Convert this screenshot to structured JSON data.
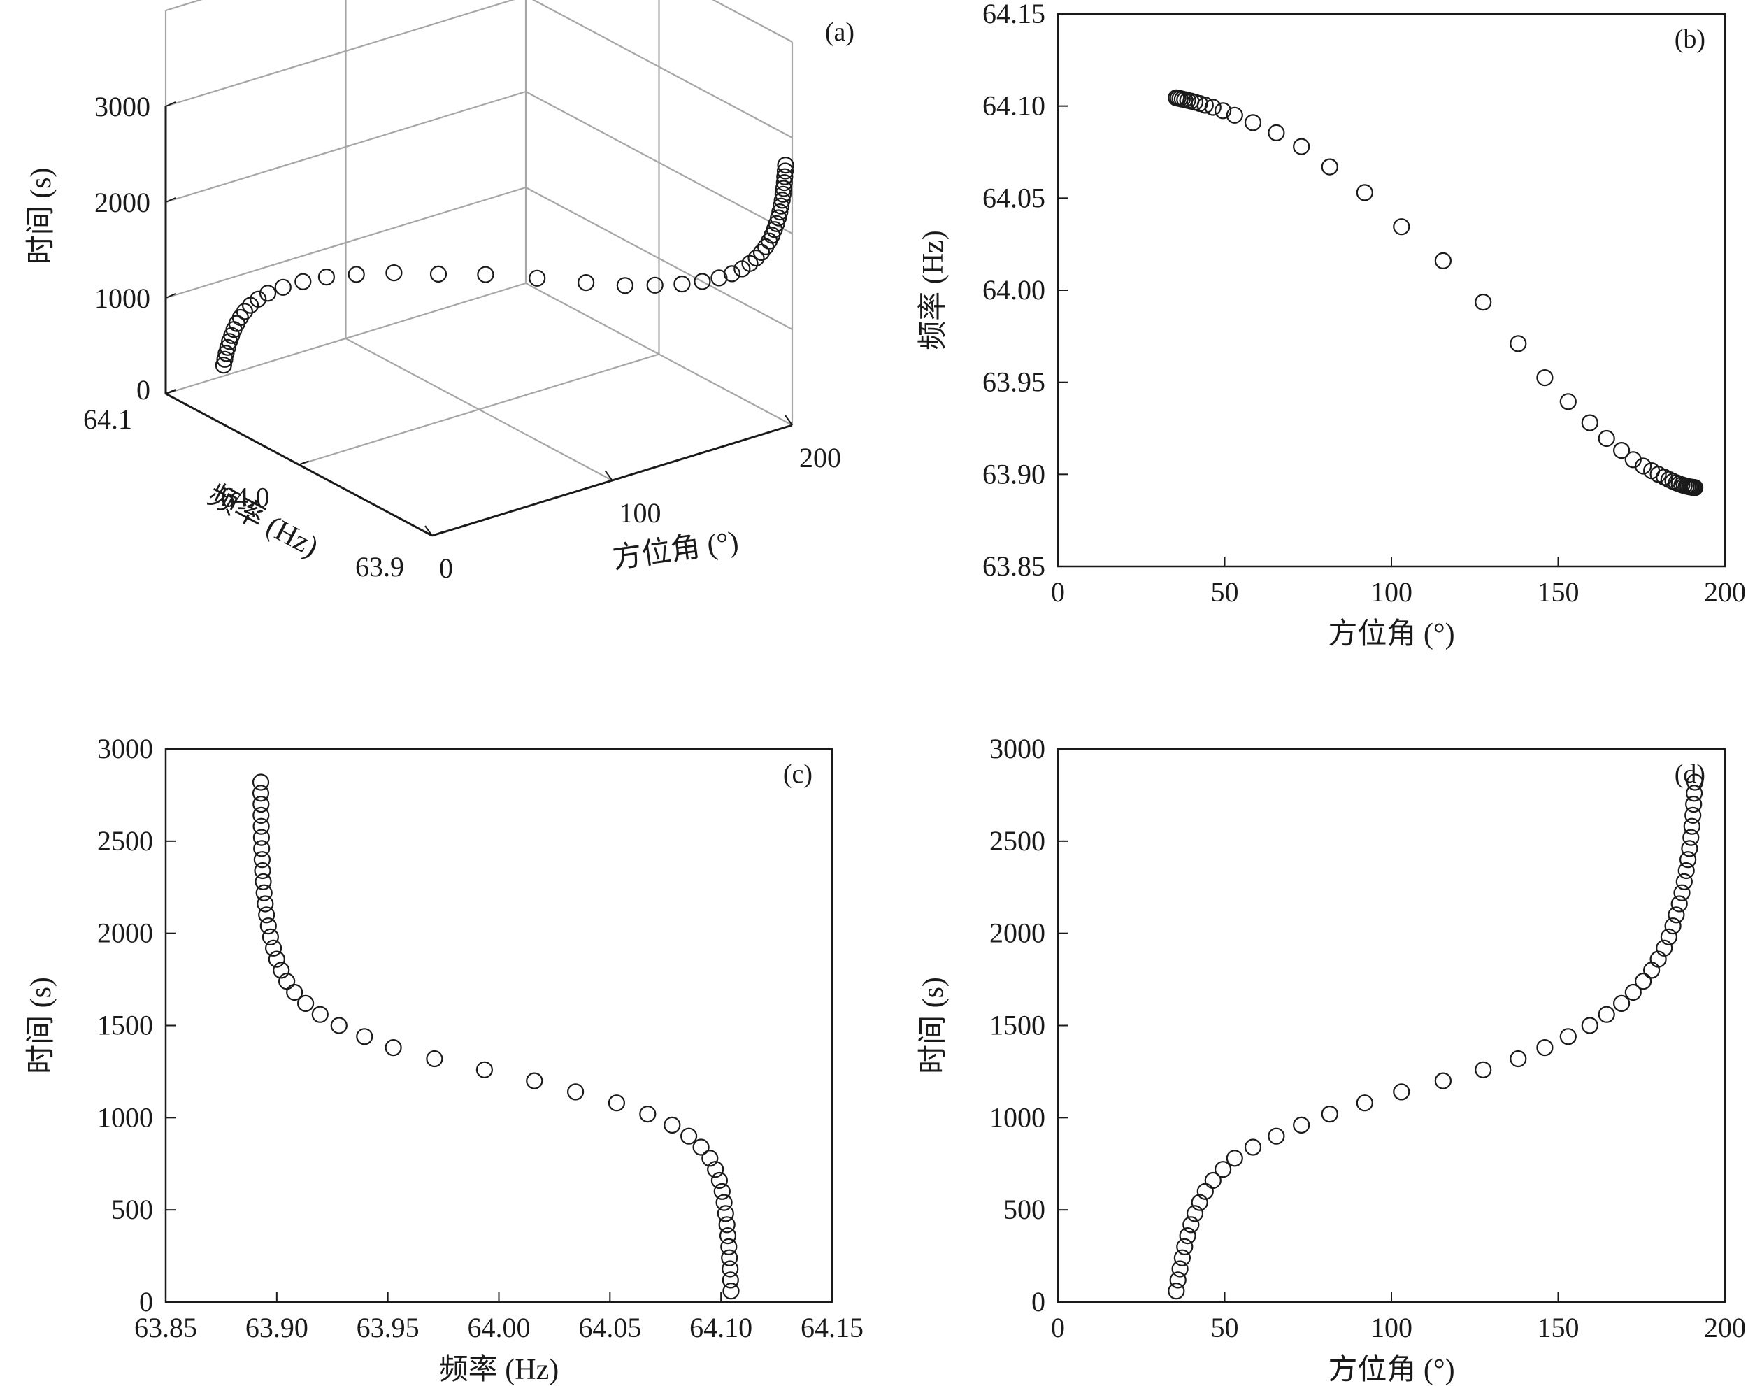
{
  "chart_data": [
    {
      "panel": "(a)",
      "type": "scatter",
      "projection": "3d",
      "x_axis": {
        "label": "方位角 (°)",
        "range": [
          0,
          200
        ],
        "ticks": [
          0,
          100,
          200
        ]
      },
      "y_axis": {
        "label": "频率 (Hz)",
        "range": [
          63.9,
          64.1
        ],
        "ticks": [
          "64.1",
          "64.0",
          "63.9"
        ]
      },
      "z_axis": {
        "label": "时间 (s)",
        "range": [
          0,
          3000
        ],
        "ticks": [
          0,
          1000,
          2000,
          3000
        ]
      },
      "grid": true,
      "marker": "open-circle"
    },
    {
      "panel": "(b)",
      "type": "scatter",
      "xlabel": "方位角 (°)",
      "ylabel": "频率 (Hz)",
      "xlim": [
        0,
        200
      ],
      "ylim": [
        63.85,
        64.15
      ],
      "xticks": [
        "0",
        "50",
        "100",
        "150",
        "200"
      ],
      "yticks": [
        "63.85",
        "63.90",
        "63.95",
        "64.00",
        "64.05",
        "64.10",
        "64.15"
      ],
      "grid": false,
      "marker": "open-circle"
    },
    {
      "panel": "(c)",
      "type": "scatter",
      "xlabel": "频率 (Hz)",
      "ylabel": "时间 (s)",
      "xlim": [
        63.85,
        64.15
      ],
      "ylim": [
        0,
        3000
      ],
      "xticks": [
        "63.85",
        "63.90",
        "63.95",
        "64.00",
        "64.05",
        "64.10",
        "64.15"
      ],
      "yticks": [
        "0",
        "500",
        "1000",
        "1500",
        "2000",
        "2500",
        "3000"
      ],
      "grid": false,
      "marker": "open-circle"
    },
    {
      "panel": "(d)",
      "type": "scatter",
      "xlabel": "方位角 (°)",
      "ylabel": "时间 (s)",
      "xlim": [
        0,
        200
      ],
      "ylim": [
        0,
        3000
      ],
      "xticks": [
        "0",
        "50",
        "100",
        "150",
        "200"
      ],
      "yticks": [
        "0",
        "500",
        "1000",
        "1500",
        "2000",
        "2500",
        "3000"
      ],
      "grid": false,
      "marker": "open-circle"
    }
  ],
  "samples": {
    "time_s": [
      60,
      120,
      180,
      240,
      300,
      360,
      420,
      480,
      540,
      600,
      660,
      720,
      780,
      840,
      900,
      960,
      1020,
      1080,
      1140,
      1200,
      1260,
      1320,
      1380,
      1440,
      1500,
      1560,
      1620,
      1680,
      1740,
      1800,
      1860,
      1920,
      1980,
      2040,
      2100,
      2160,
      2220,
      2280,
      2340,
      2400,
      2460,
      2520,
      2580,
      2640,
      2700,
      2760,
      2820
    ],
    "azimuth_deg": [
      35.5,
      36.0,
      36.6,
      37.3,
      38.0,
      38.9,
      39.9,
      41.1,
      42.5,
      44.2,
      46.5,
      49.5,
      53.0,
      58.5,
      65.5,
      73.0,
      81.5,
      92.0,
      103.0,
      115.5,
      127.5,
      138.0,
      146.0,
      153.0,
      159.5,
      164.5,
      169.0,
      172.5,
      175.5,
      178.0,
      180.0,
      181.8,
      183.2,
      184.4,
      185.4,
      186.3,
      187.1,
      187.8,
      188.4,
      188.9,
      189.4,
      189.8,
      190.1,
      190.4,
      190.6,
      190.8,
      191.0
    ],
    "frequency_hz": [
      64.1045,
      64.1043,
      64.1041,
      64.1038,
      64.1035,
      64.1031,
      64.1027,
      64.1021,
      64.1014,
      64.1005,
      64.0993,
      64.0975,
      64.095,
      64.091,
      64.0855,
      64.078,
      64.067,
      64.053,
      64.0345,
      64.016,
      63.9935,
      63.971,
      63.9525,
      63.9395,
      63.928,
      63.9195,
      63.913,
      63.908,
      63.9045,
      63.902,
      63.9,
      63.8985,
      63.8972,
      63.8962,
      63.8954,
      63.8948,
      63.8943,
      63.8939,
      63.8936,
      63.8934,
      63.8932,
      63.8931,
      63.893,
      63.8929,
      63.8929,
      63.8928,
      63.8928
    ]
  }
}
